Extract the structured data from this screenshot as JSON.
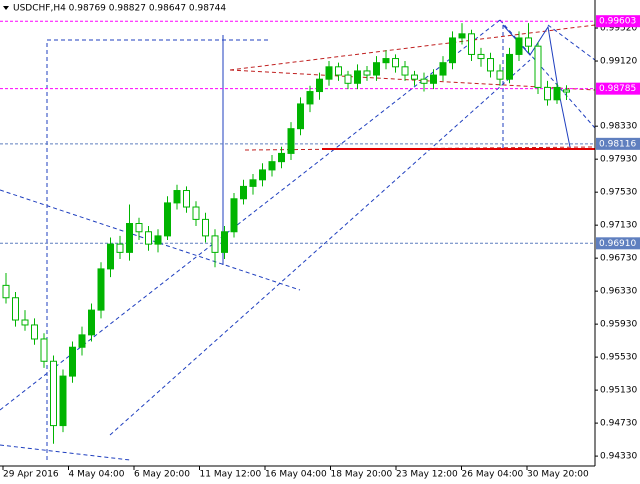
{
  "chart_data": {
    "type": "candlestick",
    "title": "USDCHF,H4 0.98769 0.98827 0.98647 0.98744",
    "ylim": [
      0.9421,
      0.9986
    ],
    "yticks": [
      {
        "value": 0.9952,
        "label": "0.99520"
      },
      {
        "value": 0.9912,
        "label": "0.99120"
      },
      {
        "value": 0.9833,
        "label": "0.98330"
      },
      {
        "value": 0.9793,
        "label": "0.97930"
      },
      {
        "value": 0.9753,
        "label": "0.97530"
      },
      {
        "value": 0.9713,
        "label": "0.97130"
      },
      {
        "value": 0.9673,
        "label": "0.96730"
      },
      {
        "value": 0.9633,
        "label": "0.96330"
      },
      {
        "value": 0.9593,
        "label": "0.95930"
      },
      {
        "value": 0.9553,
        "label": "0.95530"
      },
      {
        "value": 0.9513,
        "label": "0.95130"
      },
      {
        "value": 0.9473,
        "label": "0.94730"
      },
      {
        "value": 0.9433,
        "label": "0.94330"
      }
    ],
    "x_labels": [
      "29 Apr 2016",
      "4 May 04:00",
      "6 May 20:00",
      "11 May 12:00",
      "16 May 04:00",
      "18 May 20:00",
      "23 May 12:00",
      "26 May 04:00",
      "30 May 20:00"
    ],
    "up_color": "#00b400",
    "down_color": "#ffffff",
    "price_levels": [
      {
        "value": 0.99603,
        "label": "0.99603",
        "color": "#ff00ff"
      },
      {
        "value": 0.98785,
        "label": "0.98785",
        "color": "#ff00ff"
      },
      {
        "value": 0.98116,
        "label": "0.98116",
        "color": "#5f7fbf"
      },
      {
        "value": 0.9691,
        "label": "0.96910",
        "color": "#5f7fbf"
      }
    ],
    "candles": [
      [
        0.964,
        0.9655,
        0.9618,
        0.9625
      ],
      [
        0.9625,
        0.9632,
        0.959,
        0.9598
      ],
      [
        0.9598,
        0.961,
        0.9585,
        0.9592
      ],
      [
        0.9592,
        0.96,
        0.9568,
        0.9575
      ],
      [
        0.9575,
        0.9582,
        0.954,
        0.9548
      ],
      [
        0.9548,
        0.9555,
        0.9448,
        0.947
      ],
      [
        0.947,
        0.9538,
        0.9462,
        0.953
      ],
      [
        0.953,
        0.9572,
        0.9522,
        0.9565
      ],
      [
        0.9565,
        0.959,
        0.9555,
        0.958
      ],
      [
        0.958,
        0.9618,
        0.9572,
        0.961
      ],
      [
        0.961,
        0.9668,
        0.96,
        0.966
      ],
      [
        0.966,
        0.9698,
        0.965,
        0.969
      ],
      [
        0.969,
        0.97,
        0.9672,
        0.968
      ],
      [
        0.968,
        0.9738,
        0.967,
        0.9715
      ],
      [
        0.9715,
        0.9722,
        0.9695,
        0.9705
      ],
      [
        0.9705,
        0.9712,
        0.9682,
        0.969
      ],
      [
        0.969,
        0.9708,
        0.968,
        0.97
      ],
      [
        0.97,
        0.9748,
        0.9695,
        0.974
      ],
      [
        0.974,
        0.9762,
        0.9732,
        0.9755
      ],
      [
        0.9755,
        0.976,
        0.9728,
        0.9735
      ],
      [
        0.9735,
        0.9742,
        0.9712,
        0.972
      ],
      [
        0.972,
        0.9728,
        0.9692,
        0.97
      ],
      [
        0.97,
        0.9708,
        0.9662,
        0.968
      ],
      [
        0.968,
        0.9712,
        0.9672,
        0.9705
      ],
      [
        0.9705,
        0.9752,
        0.9698,
        0.9745
      ],
      [
        0.9745,
        0.9768,
        0.9738,
        0.976
      ],
      [
        0.976,
        0.9775,
        0.975,
        0.9768
      ],
      [
        0.9768,
        0.9788,
        0.976,
        0.978
      ],
      [
        0.978,
        0.9798,
        0.9772,
        0.979
      ],
      [
        0.979,
        0.9808,
        0.9782,
        0.98
      ],
      [
        0.98,
        0.9838,
        0.9792,
        0.983
      ],
      [
        0.983,
        0.9868,
        0.9822,
        0.986
      ],
      [
        0.986,
        0.9882,
        0.985,
        0.9875
      ],
      [
        0.9875,
        0.9898,
        0.9865,
        0.989
      ],
      [
        0.989,
        0.9912,
        0.9882,
        0.9905
      ],
      [
        0.9905,
        0.991,
        0.9888,
        0.9895
      ],
      [
        0.9895,
        0.99,
        0.9878,
        0.9885
      ],
      [
        0.9885,
        0.9908,
        0.9878,
        0.99
      ],
      [
        0.99,
        0.9906,
        0.9888,
        0.9895
      ],
      [
        0.9895,
        0.9918,
        0.9888,
        0.991
      ],
      [
        0.991,
        0.9925,
        0.9902,
        0.9915
      ],
      [
        0.9915,
        0.992,
        0.9898,
        0.9905
      ],
      [
        0.9905,
        0.9912,
        0.9888,
        0.9895
      ],
      [
        0.9895,
        0.99,
        0.9882,
        0.989
      ],
      [
        0.989,
        0.9898,
        0.9875,
        0.9885
      ],
      [
        0.9885,
        0.9902,
        0.9878,
        0.9895
      ],
      [
        0.9895,
        0.9918,
        0.9888,
        0.991
      ],
      [
        0.991,
        0.9948,
        0.9902,
        0.994
      ],
      [
        0.994,
        0.9958,
        0.9932,
        0.9945
      ],
      [
        0.9945,
        0.995,
        0.9912,
        0.992
      ],
      [
        0.992,
        0.9928,
        0.9905,
        0.9915
      ],
      [
        0.9915,
        0.9922,
        0.9892,
        0.99
      ],
      [
        0.99,
        0.9908,
        0.9882,
        0.989
      ],
      [
        0.989,
        0.9928,
        0.9885,
        0.992
      ],
      [
        0.992,
        0.9948,
        0.9912,
        0.994
      ],
      [
        0.994,
        0.9958,
        0.9922,
        0.993
      ],
      [
        0.993,
        0.9935,
        0.9872,
        0.988
      ],
      [
        0.988,
        0.9888,
        0.9858,
        0.9865
      ],
      [
        0.9865,
        0.9885,
        0.986,
        0.988
      ],
      [
        0.98769,
        0.98827,
        0.98647,
        0.98744
      ]
    ]
  }
}
